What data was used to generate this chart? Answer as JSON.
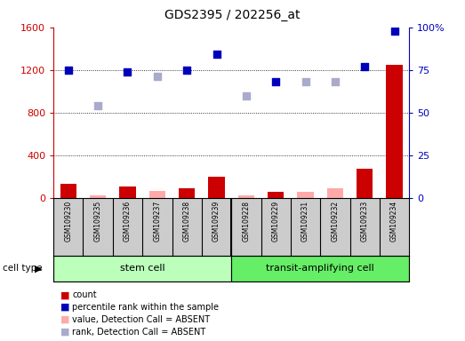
{
  "title": "GDS2395 / 202256_at",
  "samples": [
    "GSM109230",
    "GSM109235",
    "GSM109236",
    "GSM109237",
    "GSM109238",
    "GSM109239",
    "GSM109228",
    "GSM109229",
    "GSM109231",
    "GSM109232",
    "GSM109233",
    "GSM109234"
  ],
  "count_values": [
    130,
    18,
    105,
    0,
    90,
    200,
    0,
    55,
    0,
    0,
    270,
    1250
  ],
  "count_absent": [
    false,
    true,
    false,
    true,
    false,
    false,
    true,
    false,
    true,
    true,
    false,
    false
  ],
  "count_absent_values": [
    0,
    20,
    0,
    65,
    0,
    0,
    20,
    0,
    60,
    90,
    0,
    0
  ],
  "rank_values": [
    75,
    0,
    74,
    0,
    75,
    84,
    0,
    68,
    0,
    0,
    77,
    98
  ],
  "rank_absent": [
    false,
    true,
    false,
    true,
    false,
    false,
    true,
    false,
    true,
    true,
    false,
    false
  ],
  "rank_absent_values": [
    0,
    54,
    0,
    71,
    0,
    0,
    60,
    0,
    68,
    68,
    0,
    0
  ],
  "ylim_left": [
    0,
    1600
  ],
  "ylim_right": [
    0,
    100
  ],
  "yticks_left": [
    0,
    400,
    800,
    1200,
    1600
  ],
  "yticks_right": [
    0,
    25,
    50,
    75,
    100
  ],
  "ytick_labels_right": [
    "0",
    "25",
    "50",
    "75",
    "100%"
  ],
  "bar_color_present": "#cc0000",
  "bar_color_absent": "#ffaaaa",
  "dot_color_present": "#0000bb",
  "dot_color_absent": "#aaaacc",
  "bg_color_fig": "#ffffff",
  "label_bg_color": "#cccccc",
  "stem_cell_color": "#bbffbb",
  "transit_cell_color": "#66ee66",
  "left_axis_color": "#cc0000",
  "right_axis_color": "#0000bb",
  "grid_color": "black",
  "legend_items": [
    {
      "color": "#cc0000",
      "label": "count"
    },
    {
      "color": "#0000bb",
      "label": "percentile rank within the sample"
    },
    {
      "color": "#ffaaaa",
      "label": "value, Detection Call = ABSENT"
    },
    {
      "color": "#aaaacc",
      "label": "rank, Detection Call = ABSENT"
    }
  ]
}
